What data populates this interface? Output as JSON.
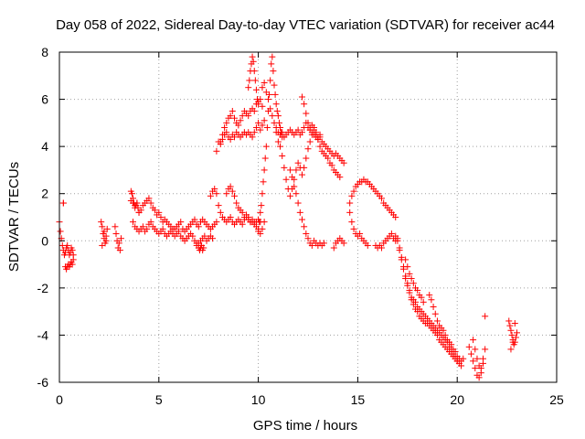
{
  "chart_data": {
    "type": "scatter",
    "title": "Day 058 of 2022, Sidereal Day-to-day VTEC variation (SDTVAR) for receiver ac44",
    "xlabel": "GPS time / hours",
    "ylabel": "SDTVAR / TECUs",
    "xlim": [
      0,
      25
    ],
    "ylim": [
      -6,
      8
    ],
    "xticks": [
      0,
      5,
      10,
      15,
      20,
      25
    ],
    "yticks": [
      -6,
      -4,
      -2,
      0,
      2,
      4,
      6,
      8
    ],
    "xtick_labels": [
      "0",
      "5",
      "10",
      "15",
      "20",
      "25"
    ],
    "ytick_labels": [
      "-6",
      "-4",
      "-2",
      "0",
      "2",
      "4",
      "6",
      "8"
    ],
    "grid": true,
    "marker": "+",
    "color": "#ff0000",
    "series": [
      {
        "name": "ac44",
        "x": [
          0.0,
          0.05,
          0.1,
          0.15,
          0.2,
          0.25,
          0.3,
          0.35,
          0.4,
          0.45,
          0.5,
          0.55,
          0.6,
          0.65,
          0.7,
          0.3,
          0.35,
          0.4,
          0.45,
          0.5,
          0.55,
          0.6,
          0.65,
          0.7,
          0.2,
          2.1,
          2.15,
          2.2,
          2.25,
          2.3,
          2.35,
          2.4,
          2.15,
          2.25,
          2.35,
          2.8,
          2.85,
          2.9,
          2.95,
          3.0,
          3.05,
          3.1,
          3.6,
          3.7,
          3.8,
          3.9,
          4.0,
          4.1,
          4.2,
          4.3,
          4.4,
          4.5,
          4.6,
          4.7,
          4.8,
          4.9,
          5.0,
          5.1,
          5.2,
          5.3,
          5.4,
          5.5,
          5.6,
          5.7,
          5.8,
          5.9,
          6.0,
          6.1,
          6.2,
          6.3,
          6.4,
          6.5,
          6.6,
          6.7,
          6.8,
          6.9,
          7.0,
          7.1,
          7.2,
          7.3,
          7.4,
          7.5,
          7.6,
          7.7,
          7.8,
          7.9,
          3.7,
          3.8,
          3.9,
          4.0,
          4.1,
          4.2,
          4.3,
          4.4,
          4.5,
          4.6,
          4.7,
          4.8,
          4.9,
          5.0,
          5.1,
          5.2,
          5.3,
          5.4,
          5.5,
          5.6,
          5.7,
          5.8,
          5.9,
          6.0,
          6.1,
          6.2,
          6.3,
          6.4,
          6.5,
          6.6,
          6.7,
          6.8,
          6.9,
          7.0,
          7.1,
          7.2,
          7.3,
          7.4,
          7.5,
          7.6,
          7.7,
          3.6,
          3.65,
          3.7,
          3.75,
          3.8,
          3.85,
          3.9,
          3.95,
          4.0,
          6.9,
          7.0,
          7.05,
          7.1,
          7.15,
          7.2,
          7.25,
          7.6,
          7.7,
          7.8,
          7.9,
          8.0,
          8.1,
          8.2,
          8.3,
          8.4,
          8.5,
          8.6,
          8.7,
          8.8,
          8.9,
          9.0,
          9.1,
          9.2,
          9.3,
          9.4,
          9.5,
          9.6,
          9.7,
          9.8,
          9.9,
          10.0,
          10.1,
          7.9,
          8.0,
          8.1,
          8.2,
          8.3,
          8.4,
          8.5,
          8.6,
          8.7,
          8.8,
          8.9,
          9.0,
          9.1,
          9.2,
          9.3,
          9.4,
          9.5,
          9.6,
          9.7,
          9.8,
          9.9,
          10.0,
          10.1,
          10.2,
          10.3,
          8.1,
          8.2,
          8.3,
          8.4,
          8.5,
          8.6,
          8.7,
          8.8,
          8.9,
          9.0,
          9.1,
          9.2,
          9.3,
          9.4,
          9.5,
          9.6,
          9.7,
          9.8,
          9.9,
          10.0,
          10.1,
          10.2,
          8.4,
          8.5,
          8.6,
          8.7,
          8.8,
          8.9,
          9.0,
          9.1,
          9.2,
          9.3,
          9.4,
          9.5,
          9.6,
          9.7,
          9.8,
          9.9,
          10.0,
          10.1,
          10.2,
          10.3,
          9.5,
          9.55,
          9.6,
          9.65,
          9.7,
          9.75,
          9.8,
          9.85,
          9.9,
          9.95,
          10.0,
          10.2,
          10.3,
          10.4,
          10.5,
          10.6,
          10.7,
          10.8,
          10.9,
          11.0,
          11.1,
          11.2,
          11.3,
          11.4,
          11.5,
          11.6,
          11.7,
          11.8,
          11.9,
          12.0,
          12.1,
          12.2,
          12.3,
          12.4,
          12.5,
          12.6,
          12.7,
          12.8,
          12.9,
          13.0,
          13.1,
          13.2,
          13.3,
          13.4,
          13.5,
          13.6,
          13.7,
          13.8,
          13.9,
          14.0,
          14.1,
          14.2,
          14.3,
          10.0,
          10.05,
          10.1,
          10.15,
          10.2,
          10.25,
          10.3,
          10.35,
          10.4,
          10.45,
          10.5,
          10.55,
          10.6,
          10.65,
          10.7,
          10.75,
          10.8,
          10.85,
          10.9,
          10.95,
          11.0,
          11.05,
          11.1,
          11.15,
          11.2,
          10.9,
          11.0,
          11.1,
          11.2,
          11.3,
          11.4,
          11.5,
          11.6,
          11.7,
          11.8,
          11.9,
          12.0,
          12.1,
          12.2,
          12.3,
          12.4,
          12.5,
          12.6,
          12.7,
          12.8,
          12.9,
          13.0,
          13.1,
          11.6,
          11.7,
          11.8,
          11.9,
          12.0,
          12.1,
          12.2,
          12.3,
          12.4,
          12.5,
          12.6,
          12.7,
          12.8,
          12.9,
          13.0,
          13.1,
          13.2,
          13.3,
          12.2,
          12.3,
          12.4,
          12.5,
          12.6,
          12.7,
          12.8,
          12.9,
          13.0,
          13.1,
          13.2,
          13.3,
          13.4,
          13.5,
          13.6,
          13.7,
          13.8,
          13.9,
          14.0,
          14.1,
          13.8,
          13.9,
          14.0,
          14.1,
          14.2,
          14.3,
          14.6,
          14.7,
          14.8,
          14.9,
          15.0,
          15.1,
          15.2,
          15.3,
          15.4,
          15.5,
          15.6,
          15.7,
          15.8,
          15.9,
          16.0,
          16.1,
          16.2,
          16.3,
          16.4,
          16.5,
          16.6,
          16.7,
          16.8,
          16.9,
          14.6,
          14.7,
          14.8,
          14.9,
          15.0,
          15.1,
          15.2,
          15.3,
          15.4,
          15.5,
          15.9,
          16.0,
          16.1,
          16.2,
          16.3,
          16.4,
          16.5,
          16.6,
          16.7,
          16.8,
          16.9,
          16.9,
          17.0,
          17.1,
          17.2,
          17.3,
          17.4,
          17.5,
          17.6,
          17.7,
          17.8,
          17.9,
          18.0,
          18.1,
          18.2,
          18.3,
          18.4,
          18.5,
          18.6,
          18.7,
          18.8,
          18.9,
          19.0,
          19.1,
          19.2,
          19.3,
          19.4,
          19.5,
          19.6,
          19.7,
          19.8,
          19.9,
          20.0,
          20.1,
          20.2,
          17.0,
          17.1,
          17.2,
          17.3,
          17.4,
          17.5,
          17.6,
          17.7,
          17.8,
          17.9,
          18.0,
          18.1,
          18.2,
          18.3,
          18.4,
          18.5,
          18.6,
          18.7,
          18.8,
          18.9,
          19.0,
          19.1,
          19.2,
          19.3,
          19.4,
          19.5,
          19.6,
          19.7,
          19.8,
          19.9,
          20.0,
          17.4,
          17.5,
          17.6,
          17.7,
          17.8,
          17.9,
          18.0,
          18.1,
          18.2,
          18.3,
          18.6,
          18.7,
          18.8,
          18.9,
          19.0,
          19.1,
          19.2,
          19.3,
          19.4,
          19.5,
          19.6,
          19.7,
          19.8,
          19.9,
          20.0,
          20.1,
          20.2,
          20.3,
          20.6,
          20.7,
          20.8,
          20.9,
          21.0,
          21.1,
          21.2,
          21.3,
          21.4,
          20.8,
          20.9,
          21.0,
          21.1,
          21.2,
          21.3,
          22.6,
          22.65,
          22.7,
          22.75,
          22.8,
          22.85,
          22.9,
          22.95,
          23.0,
          22.7,
          22.8,
          22.9,
          21.4,
          0.2
        ],
        "y": [
          0.8,
          0.4,
          0.1,
          -0.2,
          -0.4,
          -0.6,
          -0.5,
          -0.3,
          -0.2,
          -0.4,
          -0.6,
          -0.5,
          -0.3,
          -0.4,
          -0.6,
          -1.1,
          -1.2,
          -1.1,
          -1.0,
          -1.1,
          -1.0,
          -0.9,
          -1.0,
          -0.8,
          1.6,
          0.8,
          0.6,
          0.3,
          0.1,
          -0.1,
          0.2,
          0.5,
          -0.2,
          0.4,
          0.0,
          0.6,
          0.3,
          0.0,
          -0.3,
          -0.1,
          -0.4,
          0.1,
          1.7,
          1.6,
          1.5,
          1.6,
          1.2,
          1.3,
          1.5,
          1.6,
          1.7,
          1.8,
          1.6,
          1.4,
          1.3,
          1.1,
          1.2,
          1.0,
          0.8,
          0.9,
          0.8,
          0.7,
          0.6,
          0.5,
          0.5,
          0.6,
          0.7,
          0.8,
          0.5,
          0.4,
          0.5,
          0.6,
          0.7,
          0.8,
          0.9,
          0.7,
          0.6,
          0.8,
          0.9,
          0.8,
          0.7,
          0.6,
          0.5,
          0.6,
          0.7,
          0.8,
          0.8,
          0.6,
          0.5,
          0.4,
          0.5,
          0.6,
          0.4,
          0.5,
          0.7,
          0.8,
          0.6,
          0.5,
          0.4,
          0.3,
          0.4,
          0.5,
          0.3,
          0.2,
          0.3,
          0.4,
          0.3,
          0.2,
          0.3,
          0.4,
          0.2,
          0.1,
          0.0,
          0.1,
          0.2,
          0.3,
          0.2,
          0.0,
          -0.2,
          -0.1,
          0.0,
          0.1,
          0.2,
          0.0,
          0.1,
          0.2,
          0.1,
          2.1,
          2.0,
          1.8,
          1.6,
          1.4,
          1.5,
          1.6,
          1.4,
          1.2,
          -0.1,
          -0.3,
          -0.4,
          -0.3,
          -0.2,
          -0.4,
          -0.3,
          1.9,
          2.1,
          2.2,
          2.0,
          1.5,
          1.2,
          1.0,
          0.9,
          0.8,
          0.9,
          1.0,
          0.8,
          0.7,
          0.8,
          0.9,
          0.8,
          0.7,
          0.9,
          1.0,
          0.9,
          0.8,
          0.8,
          0.7,
          0.8,
          0.9,
          0.8,
          3.8,
          4.2,
          4.1,
          4.3,
          4.5,
          4.6,
          4.4,
          4.3,
          4.5,
          4.4,
          4.6,
          4.5,
          4.4,
          4.5,
          4.6,
          4.5,
          4.6,
          4.5,
          4.4,
          4.6,
          4.8,
          5.0,
          4.7,
          4.9,
          5.1,
          4.2,
          4.5,
          4.8,
          5.0,
          5.2,
          5.3,
          5.5,
          5.2,
          5.0,
          4.9,
          5.1,
          5.3,
          5.5,
          5.4,
          5.3,
          5.5,
          5.6,
          5.5,
          5.8,
          5.9,
          6.0,
          5.7,
          2.0,
          2.2,
          2.3,
          2.1,
          1.9,
          1.6,
          1.4,
          1.3,
          1.2,
          1.0,
          1.1,
          1.0,
          0.8,
          0.9,
          0.8,
          0.6,
          0.4,
          0.3,
          0.5,
          0.8,
          6.5,
          6.8,
          7.2,
          7.5,
          7.8,
          7.6,
          7.2,
          6.8,
          6.4,
          6.0,
          5.8,
          6.5,
          6.7,
          6.3,
          6.0,
          5.6,
          5.3,
          5.0,
          4.8,
          4.6,
          4.5,
          4.6,
          4.4,
          4.5,
          4.6,
          4.7,
          4.6,
          4.5,
          4.6,
          4.7,
          4.5,
          4.6,
          4.8,
          5.0,
          4.8,
          4.7,
          4.6,
          4.5,
          4.4,
          4.3,
          4.4,
          4.2,
          4.1,
          4.0,
          3.9,
          3.8,
          3.7,
          3.6,
          3.7,
          3.6,
          3.5,
          3.4,
          3.3,
          0.5,
          0.8,
          1.2,
          1.5,
          2.0,
          2.5,
          3.0,
          3.5,
          4.0,
          4.8,
          5.5,
          6.2,
          6.8,
          7.5,
          7.8,
          7.2,
          6.6,
          6.2,
          5.8,
          5.5,
          5.3,
          5.0,
          4.8,
          4.6,
          4.4,
          4.6,
          4.2,
          4.0,
          3.6,
          3.1,
          2.6,
          2.2,
          1.9,
          2.2,
          2.6,
          3.0,
          3.3,
          3.1,
          2.8,
          3.1,
          3.5,
          3.9,
          4.2,
          4.5,
          4.8,
          4.6,
          4.4,
          4.5,
          3.0,
          2.7,
          2.3,
          2.0,
          1.6,
          1.2,
          0.9,
          0.6,
          0.3,
          0.1,
          -0.1,
          -0.2,
          0.0,
          -0.1,
          -0.2,
          -0.1,
          -0.2,
          -0.1,
          6.1,
          5.8,
          5.4,
          5.0,
          4.8,
          4.9,
          4.7,
          4.5,
          4.3,
          4.0,
          3.8,
          3.7,
          3.6,
          3.5,
          3.3,
          3.2,
          3.0,
          2.9,
          2.8,
          2.7,
          -0.3,
          -0.1,
          0.0,
          0.1,
          0.0,
          -0.1,
          1.6,
          1.9,
          2.1,
          2.3,
          2.4,
          2.5,
          2.5,
          2.6,
          2.5,
          2.5,
          2.4,
          2.3,
          2.2,
          2.1,
          2.0,
          1.9,
          1.8,
          1.6,
          1.5,
          1.4,
          1.3,
          1.2,
          1.1,
          1.0,
          1.2,
          0.8,
          0.5,
          0.3,
          0.2,
          0.3,
          0.1,
          0.0,
          -0.1,
          -0.2,
          -0.2,
          -0.3,
          -0.2,
          -0.3,
          -0.1,
          0.0,
          0.1,
          0.2,
          0.3,
          0.1,
          0.0,
          0.2,
          0.0,
          -0.4,
          -0.8,
          -1.2,
          -1.6,
          -1.9,
          -2.2,
          -2.5,
          -2.7,
          -2.9,
          -3.0,
          -3.2,
          -3.3,
          -3.4,
          -3.5,
          -3.5,
          -3.6,
          -3.7,
          -3.8,
          -3.9,
          -4.0,
          -4.2,
          -4.3,
          -4.4,
          -4.5,
          -4.6,
          -4.7,
          -4.8,
          -4.9,
          -5.0,
          -5.1,
          -5.2,
          -5.3,
          0.1,
          -0.3,
          -0.7,
          -1.1,
          -1.5,
          -1.8,
          -2.1,
          -2.4,
          -2.5,
          -2.6,
          -2.8,
          -2.9,
          -3.0,
          -3.1,
          -3.2,
          -3.3,
          -3.4,
          -3.5,
          -3.6,
          -3.7,
          -3.8,
          -3.9,
          -4.0,
          -4.1,
          -4.2,
          -4.3,
          -4.5,
          -4.6,
          -4.8,
          -4.9,
          -5.1,
          -0.8,
          -1.1,
          -1.4,
          -1.6,
          -1.8,
          -2.0,
          -2.1,
          -2.3,
          -2.4,
          -2.6,
          -2.3,
          -2.5,
          -2.8,
          -3.1,
          -3.4,
          -3.6,
          -3.7,
          -3.8,
          -4.0,
          -4.2,
          -4.3,
          -4.4,
          -4.6,
          -4.7,
          -4.9,
          -5.0,
          -5.1,
          -5.0,
          -4.5,
          -4.8,
          -5.1,
          -5.4,
          -5.7,
          -5.8,
          -5.4,
          -5.0,
          -4.6,
          -4.2,
          -4.6,
          -5.0,
          -5.3,
          -5.6,
          -5.2,
          -3.4,
          -3.6,
          -3.8,
          -4.0,
          -4.2,
          -4.4,
          -4.3,
          -4.1,
          -3.9,
          -4.6,
          -4.3,
          -3.5,
          -3.2,
          1.6
        ]
      }
    ]
  }
}
